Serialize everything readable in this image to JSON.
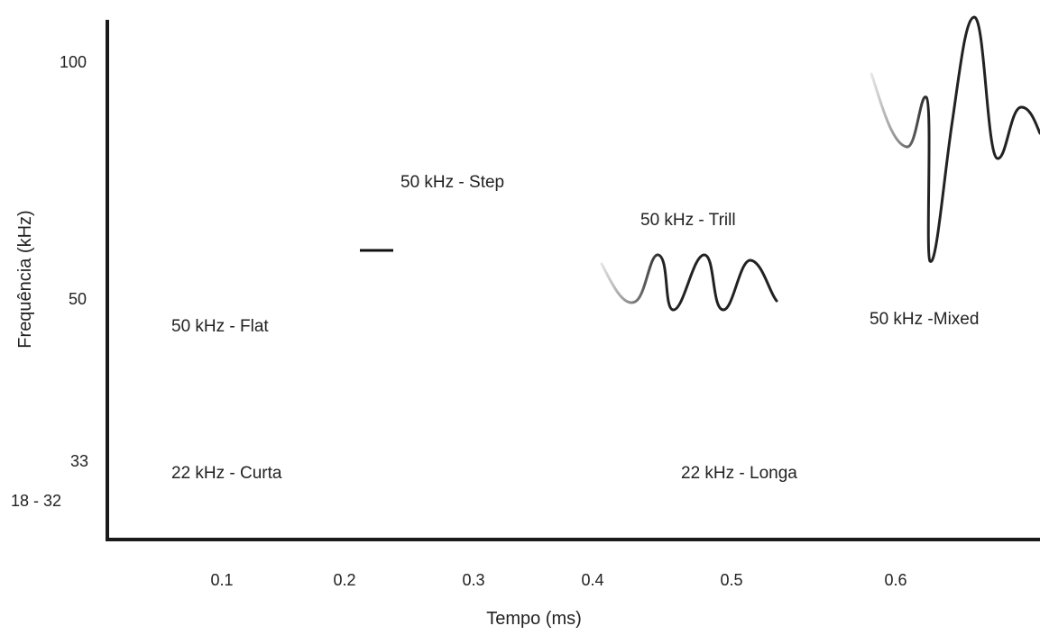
{
  "chart_data": {
    "type": "diagram",
    "xlabel": "Tempo (ms)",
    "ylabel": "Frequência (kHz)",
    "x_ticks": [
      "0.1",
      "0.2",
      "0.3",
      "0.4",
      "0.5",
      "0.6"
    ],
    "y_ticks": [
      "100",
      "50",
      "33",
      "18 - 32"
    ],
    "calls": [
      {
        "id": "flat",
        "label": "50 kHz - Flat"
      },
      {
        "id": "step",
        "label": "50 kHz - Step"
      },
      {
        "id": "trill",
        "label": "50 kHz - Trill"
      },
      {
        "id": "mixed",
        "label": "50 kHz -Mixed"
      },
      {
        "id": "curta",
        "label": "22 kHz - Curta"
      },
      {
        "id": "longa",
        "label": "22 kHz - Longa"
      }
    ]
  }
}
